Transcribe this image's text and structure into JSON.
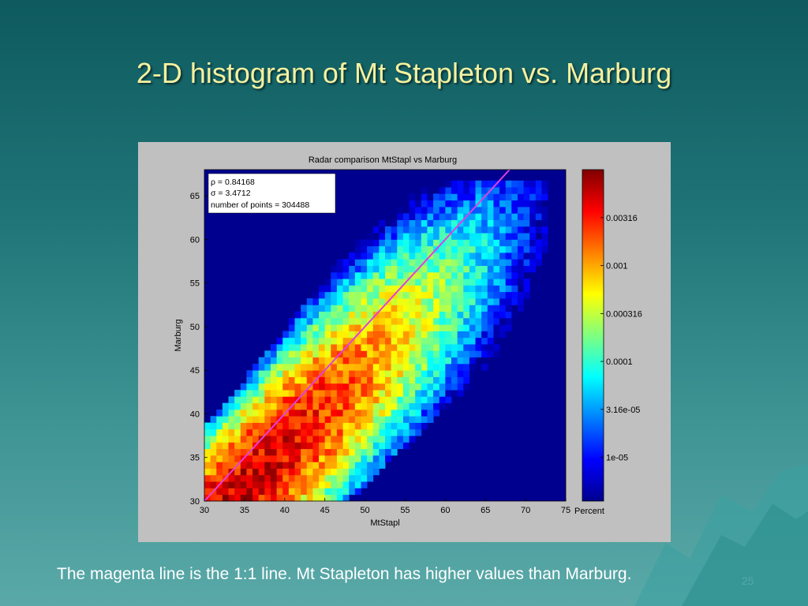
{
  "slide": {
    "title": "2-D histogram of Mt Stapleton vs. Marburg",
    "caption": "The magenta line is the 1:1 line. Mt Stapleton has higher values than Marburg.",
    "page_number": "25"
  },
  "colors": {
    "title_text": "#f4f1a0",
    "plot_background": "#00008f",
    "one_to_one_line": "#e040e0",
    "figure_background": "#c0c0c0"
  },
  "chart_data": {
    "type": "heatmap",
    "title": "Radar comparison MtStapl vs Marburg",
    "xlabel": "MtStapl",
    "ylabel": "Marburg",
    "xlim": [
      30,
      75
    ],
    "ylim": [
      30,
      68
    ],
    "xticks": [
      30,
      35,
      40,
      45,
      50,
      55,
      60,
      65,
      70,
      75
    ],
    "yticks": [
      30,
      35,
      40,
      45,
      50,
      55,
      60,
      65
    ],
    "colorbar": {
      "label": "Percent",
      "scale": "log",
      "range": [
        3.5e-06,
        0.01
      ],
      "ticks": [
        {
          "value": 1e-05,
          "label": "1e-05"
        },
        {
          "value": 3.16e-05,
          "label": "3.16e-05"
        },
        {
          "value": 0.0001,
          "label": "0.0001"
        },
        {
          "value": 0.000316,
          "label": "0.000316"
        },
        {
          "value": 0.001,
          "label": "0.001"
        },
        {
          "value": 0.00316,
          "label": "0.00316"
        }
      ]
    },
    "stats_box": [
      "ρ = 0.84168",
      "σ = 3.4712",
      "number of points = 304488"
    ],
    "reference_line": {
      "type": "1:1",
      "from": [
        30,
        30
      ],
      "to": [
        68,
        68
      ]
    },
    "distribution": {
      "x_bins": [
        30,
        75,
        0.75
      ],
      "y_bins": [
        30,
        68,
        0.75
      ],
      "ridge": "y = x - 2.5 to y = x - 4.5",
      "spread_sigma": 3.47,
      "peak_percent": 0.0056,
      "peak_at": [
        37,
        32
      ],
      "observed_extent": {
        "min_x": 30,
        "max_x": 73,
        "min_y": 30,
        "max_y": 67
      }
    }
  }
}
